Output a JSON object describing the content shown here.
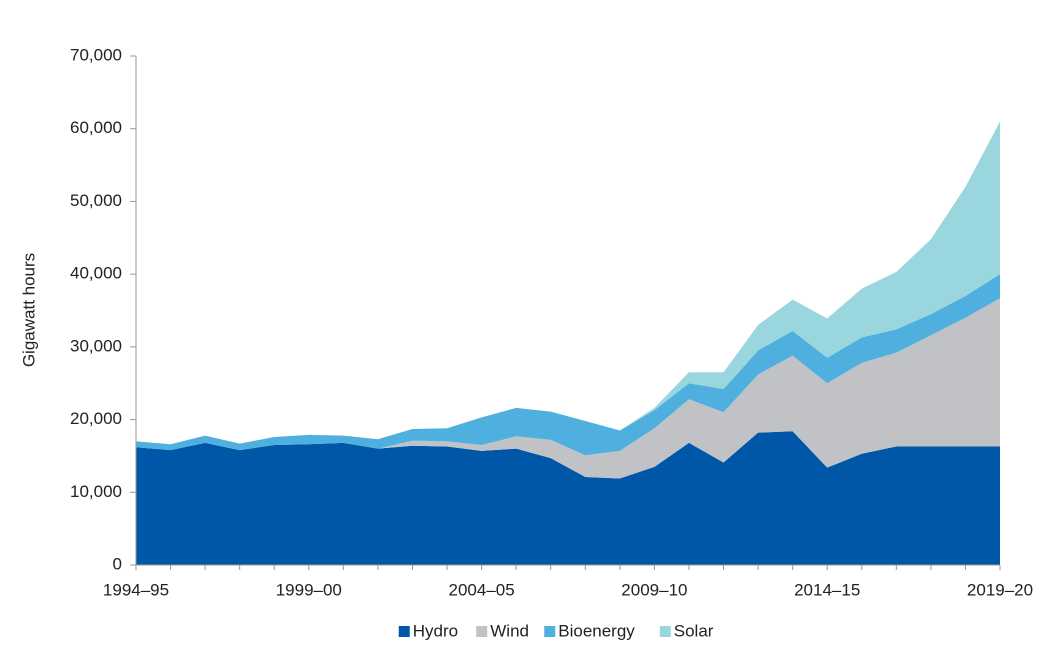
{
  "chart_data": {
    "type": "stacked-area",
    "y_label": "Gigawatt hours",
    "categories": [
      "1994–95",
      null,
      null,
      null,
      null,
      "1999–00",
      null,
      null,
      null,
      null,
      "2004–05",
      null,
      null,
      null,
      null,
      "2009–10",
      null,
      null,
      null,
      null,
      "2014–15",
      null,
      null,
      null,
      null,
      "2019–20"
    ],
    "series": [
      {
        "name": "Hydro",
        "color": "#0057a8",
        "values": [
          16200,
          15800,
          16800,
          15800,
          16500,
          16600,
          16800,
          16000,
          16400,
          16300,
          15700,
          16000,
          14700,
          12100,
          11900,
          13500,
          16800,
          14100,
          18200,
          18400,
          13400,
          15300,
          16300,
          16300,
          16300,
          16300
        ]
      },
      {
        "name": "Wind",
        "color": "#c0c2c5",
        "values": [
          0,
          0,
          0,
          0,
          0,
          0,
          0,
          0,
          700,
          700,
          800,
          1700,
          2500,
          3000,
          3800,
          5300,
          6000,
          6900,
          8000,
          10400,
          11600,
          12500,
          12900,
          15300,
          17700,
          20400
        ]
      },
      {
        "name": "Bioenergy",
        "color": "#4fb0df",
        "values": [
          800,
          800,
          1000,
          900,
          1100,
          1300,
          1000,
          1300,
          1600,
          1800,
          3800,
          3900,
          3900,
          4700,
          2800,
          2500,
          2200,
          3200,
          3300,
          3400,
          3500,
          3500,
          3200,
          2900,
          3000,
          3300
        ]
      },
      {
        "name": "Solar",
        "color": "#9ad6dd",
        "values": [
          0,
          0,
          0,
          0,
          0,
          0,
          0,
          0,
          0,
          0,
          0,
          0,
          0,
          0,
          0,
          300,
          1500,
          2300,
          3500,
          4300,
          5400,
          6700,
          7900,
          10300,
          15000,
          21000
        ]
      }
    ],
    "ylim": [
      0,
      70000
    ],
    "yticks": [
      0,
      {
        "value": 10000,
        "label": "10,000"
      },
      {
        "value": 20000,
        "label": "20,000"
      },
      {
        "value": 30000,
        "label": "30,000"
      },
      {
        "value": 40000,
        "label": "40,000"
      },
      {
        "value": 50000,
        "label": "50,000"
      },
      {
        "value": 60000,
        "label": "60,000"
      },
      {
        "value": 70000,
        "label": "70,000"
      }
    ],
    "legend": "bottom"
  }
}
